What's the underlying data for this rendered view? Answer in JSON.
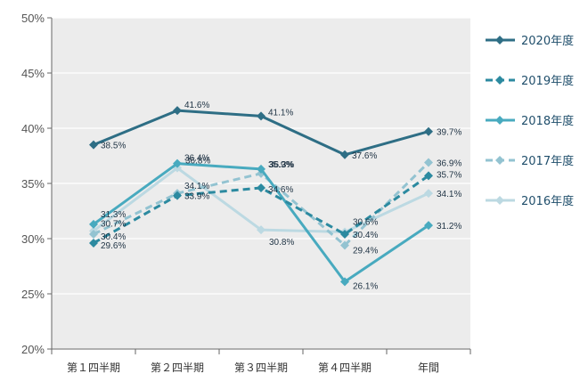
{
  "chart_data": {
    "type": "line",
    "categories": [
      "第１四半期",
      "第２四半期",
      "第３四半期",
      "第４四半期",
      "年間"
    ],
    "ylim": [
      20,
      50
    ],
    "yticks": [
      "20%",
      "25%",
      "30%",
      "35%",
      "40%",
      "45%",
      "50%"
    ],
    "grid": true,
    "legend_position": "right",
    "plot_background": "#ececec",
    "series": [
      {
        "name": "2020年度",
        "values": [
          38.5,
          41.6,
          41.1,
          37.6,
          39.7
        ],
        "labels": [
          "38.5%",
          "41.6%",
          "41.1%",
          "37.6%",
          "39.7%"
        ],
        "color": "#2e6e85",
        "dash": "solid",
        "width": 3
      },
      {
        "name": "2019年度",
        "values": [
          29.6,
          33.9,
          34.6,
          30.4,
          35.7
        ],
        "labels": [
          "29.6%",
          "33.9%",
          "34.6%",
          "30.4%",
          "35.7%"
        ],
        "color": "#2c8aa0",
        "dash": "dashed",
        "width": 3
      },
      {
        "name": "2018年度",
        "values": [
          31.3,
          36.8,
          36.3,
          26.1,
          31.2
        ],
        "labels": [
          "31.3%",
          "36.8%",
          "36.3%",
          "26.1%",
          "31.2%"
        ],
        "color": "#48aabf",
        "dash": "solid",
        "width": 3
      },
      {
        "name": "2017年度",
        "values": [
          30.4,
          34.1,
          35.9,
          29.4,
          36.9
        ],
        "labels": [
          "30.4%",
          "34.1%",
          "35.9%",
          "29.4%",
          "36.9%"
        ],
        "color": "#93c3d1",
        "dash": "dashed",
        "width": 3
      },
      {
        "name": "2016年度",
        "values": [
          30.7,
          36.4,
          30.8,
          30.6,
          34.1
        ],
        "labels": [
          "30.7%",
          "36.4%",
          "30.8%",
          "30.6%",
          "34.1%"
        ],
        "color": "#bcd9e2",
        "dash": "solid",
        "width": 3
      }
    ]
  }
}
